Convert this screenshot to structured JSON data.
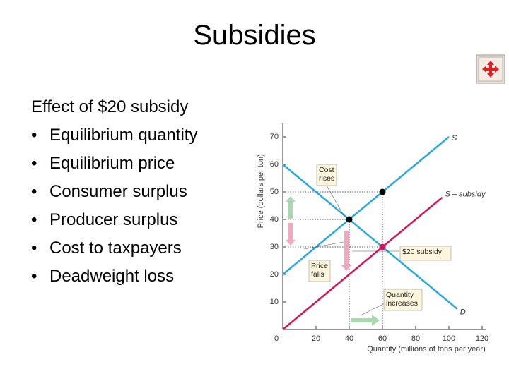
{
  "title": "Subsidies",
  "intro": "Effect of $20 subsidy",
  "bullets": [
    "Equilibrium quantity",
    "Equilibrium price",
    "Consumer surplus",
    "Producer surplus",
    "Cost to taxpayers",
    "Deadweight loss"
  ],
  "bullet_symbol": "•",
  "chart_data": {
    "type": "line",
    "ylabel": "Price (dollars per ton)",
    "xlabel": "Quantity (millions of tons per year)",
    "xlim": [
      0,
      120
    ],
    "xticks": [
      0,
      20,
      40,
      60,
      80,
      100,
      120
    ],
    "ylim": [
      0,
      75
    ],
    "yticks": [
      10,
      20,
      30,
      40,
      50,
      60,
      70
    ],
    "highlight_tick_color": "#d4145a",
    "series": [
      {
        "name": "S",
        "color": "#29a8e0",
        "x": [
          0,
          100
        ],
        "values": [
          20,
          70
        ]
      },
      {
        "name": "S – subsidy",
        "color": "#d4145a",
        "x": [
          0,
          96
        ],
        "values": [
          0,
          48
        ]
      },
      {
        "name": "D",
        "color": "#29a8e0",
        "x": [
          0,
          105
        ],
        "values": [
          60,
          7.5
        ]
      }
    ],
    "points": [
      {
        "x": 40,
        "y": 40,
        "color": "#000"
      },
      {
        "x": 60,
        "y": 50,
        "color": "#000"
      },
      {
        "x": 60,
        "y": 30,
        "color": "#d4145a"
      }
    ],
    "annotations": [
      "Cost rises",
      "Price falls",
      "$20 subsidy",
      "Quantity increases"
    ]
  }
}
